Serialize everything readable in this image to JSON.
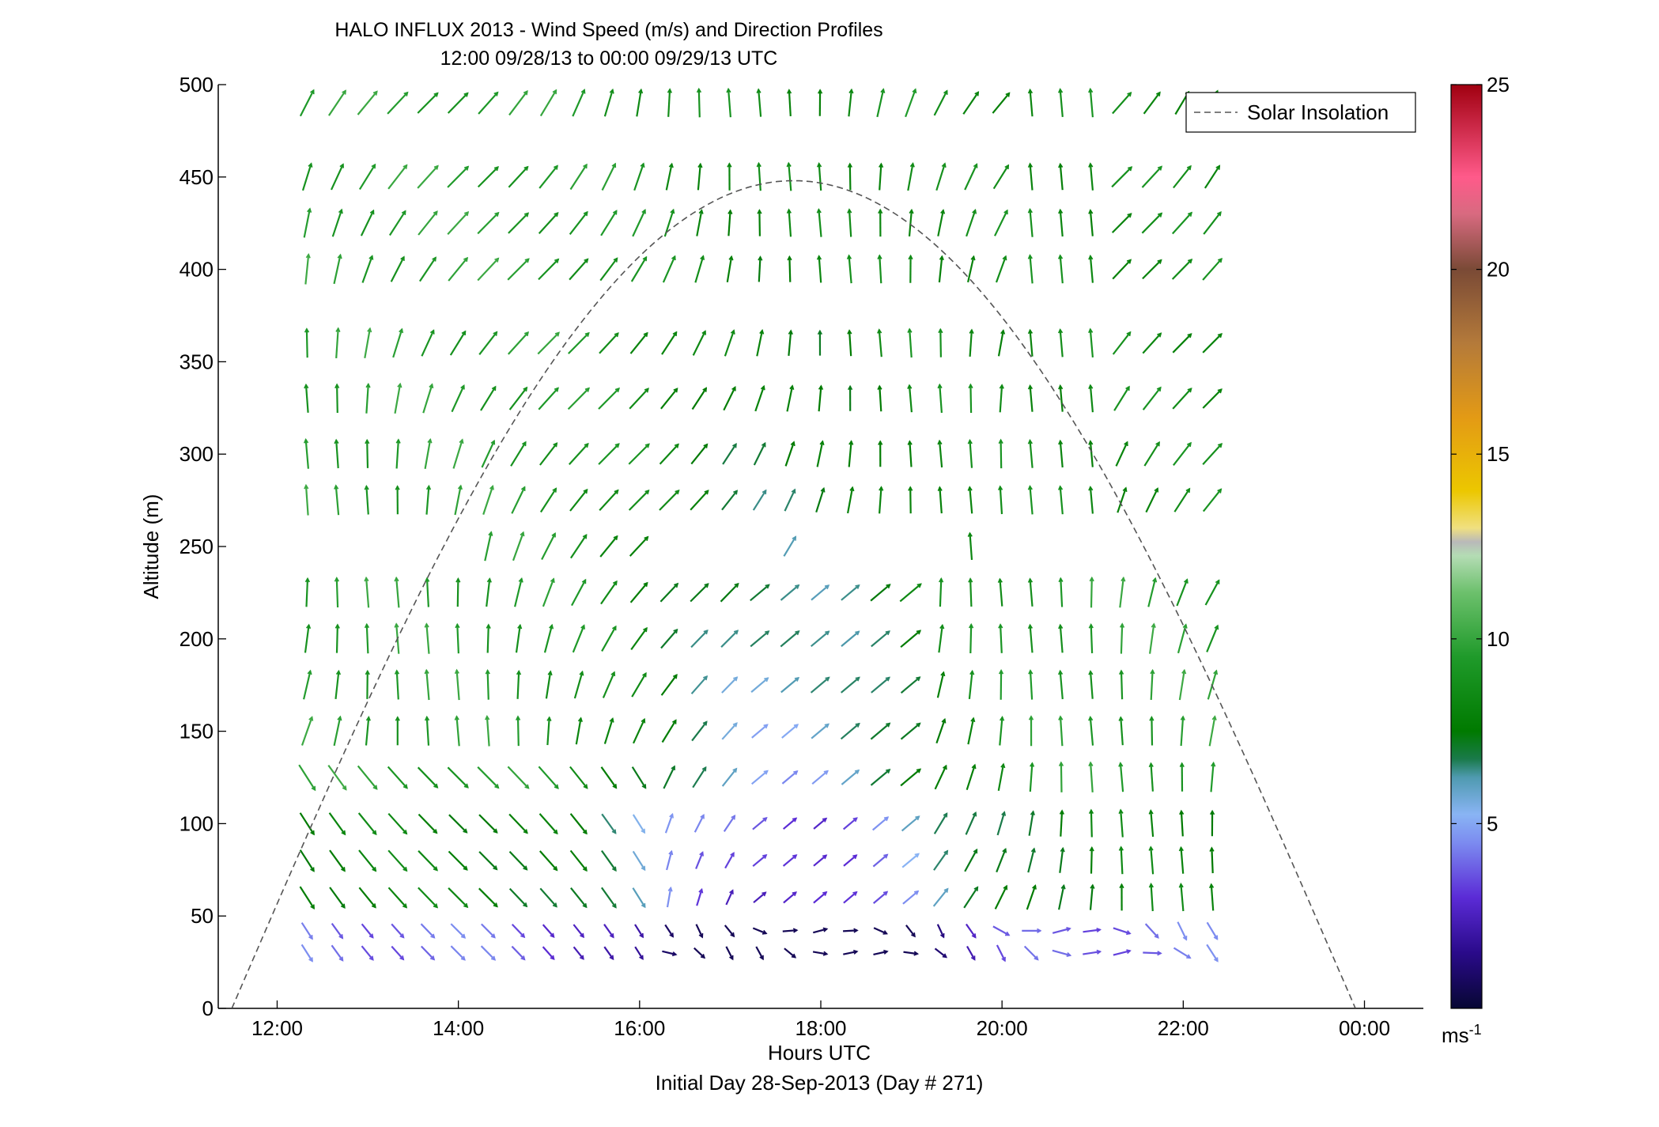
{
  "chart_data": {
    "type": "quiver",
    "title": "HALO INFLUX 2013 - Wind Speed (m/s) and Direction Profiles",
    "subtitle": "12:00 09/28/13 to 00:00 09/29/13  UTC",
    "xlabel": "Hours UTC",
    "xlabel2": "Initial Day 28-Sep-2013 (Day # 271)",
    "ylabel": "Altitude (m)",
    "xlim": [
      11.35,
      24.65
    ],
    "ylim": [
      0,
      500
    ],
    "x_ticks": [
      12,
      14,
      16,
      18,
      20,
      22,
      24
    ],
    "x_tick_labels": [
      "12:00",
      "14:00",
      "16:00",
      "18:00",
      "20:00",
      "22:00",
      "00:00"
    ],
    "y_ticks": [
      0,
      50,
      100,
      150,
      200,
      250,
      300,
      350,
      400,
      450,
      500
    ],
    "y_tick_labels": [
      "0",
      "50",
      "100",
      "150",
      "200",
      "250",
      "300",
      "350",
      "400",
      "450",
      "500"
    ],
    "grid": false,
    "legend": {
      "entries": [
        "Solar Insolation"
      ],
      "placement": "top-right"
    },
    "colorbar": {
      "range": [
        0,
        25
      ],
      "ticks": [
        5,
        10,
        15,
        20,
        25
      ],
      "tick_labels": [
        "5",
        "10",
        "15",
        "20",
        "25"
      ],
      "unit_base": "ms",
      "unit_exp": "-1"
    },
    "solar_insolation": {
      "style": "dashed",
      "color": "#555555",
      "start_hour": 11.5,
      "peak_hour": 17.7,
      "end_hour": 23.9,
      "peak_value": 448
    },
    "altitudes": [
      30,
      42,
      60,
      80,
      100,
      125,
      150,
      175,
      200,
      225,
      250,
      275,
      300,
      330,
      360,
      400,
      425,
      450,
      490
    ],
    "times_start": 12.33,
    "times_step": 0.333,
    "times_count": 31,
    "missing_altitude_bands": [
      250
    ],
    "band_250_present_hours": [
      14.33,
      14.67,
      15.0,
      15.33,
      15.67,
      16.0,
      17.67,
      19.67,
      23.67
    ],
    "sample_note": "Wind speed (m/s) and direction (deg) per time × altitude cell"
  }
}
